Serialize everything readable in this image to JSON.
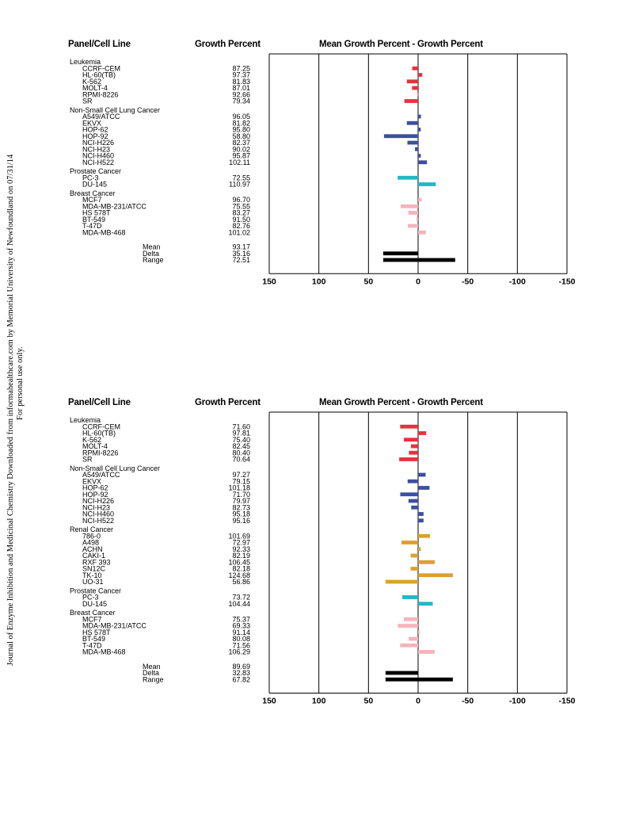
{
  "watermark": {
    "line1": "Journal of Enzyme Inhibition and Medicinal Chemistry Downloaded from informahealthcare.com by Memorial University of Newfoundland on 07/31/14",
    "line2": "For personal use only."
  },
  "colors": {
    "Leukemia": "#e8323c",
    "Non-Small Cell Lung Cancer": "#3c4fa0",
    "Renal Cancer": "#dca030",
    "Prostate Cancer": "#23b7c4",
    "Breast Cancer": "#f6b3bc",
    "summary": "#000000"
  },
  "chart_data": [
    {
      "type": "bar",
      "orientation": "horizontal",
      "headers": {
        "panel": "Panel/Cell Line",
        "growth": "Growth Percent",
        "mean_chart": "Mean Growth Percent - Growth Percent"
      },
      "xlim": [
        150,
        -150
      ],
      "ticks": [
        "150",
        "100",
        "50",
        "0",
        "-50",
        "-100",
        "-150"
      ],
      "groups": [
        {
          "name": "Leukemia",
          "rows": [
            {
              "label": "CCRF-CEM",
              "gp": "87.25",
              "value": 5.92
            },
            {
              "label": "HL-60(TB)",
              "gp": "97.37",
              "value": -4.2
            },
            {
              "label": "K-562",
              "gp": "81.83",
              "value": 11.34
            },
            {
              "label": "MOLT-4",
              "gp": "87.01",
              "value": 6.16
            },
            {
              "label": "RPMI-8226",
              "gp": "92.66",
              "value": 0.51
            },
            {
              "label": "SR",
              "gp": "79.34",
              "value": 13.83
            }
          ]
        },
        {
          "name": "Non-Small Cell Lung Cancer",
          "rows": [
            {
              "label": "A549/ATCC",
              "gp": "96.05",
              "value": -2.88
            },
            {
              "label": "EKVX",
              "gp": "81.82",
              "value": 11.35
            },
            {
              "label": "HOP-62",
              "gp": "95.80",
              "value": -2.63
            },
            {
              "label": "HOP-92",
              "gp": "58.80",
              "value": 34.37
            },
            {
              "label": "NCI-H226",
              "gp": "82.37",
              "value": 10.8
            },
            {
              "label": "NCI-H23",
              "gp": "90.02",
              "value": 3.15
            },
            {
              "label": "NCI-H460",
              "gp": "95.87",
              "value": -2.7
            },
            {
              "label": "NCI-H522",
              "gp": "102.11",
              "value": -8.94
            }
          ]
        },
        {
          "name": "Prostate Cancer",
          "rows": [
            {
              "label": "PC-3",
              "gp": "72.55",
              "value": 20.62
            },
            {
              "label": "DU-145",
              "gp": "110.97",
              "value": -17.8
            }
          ]
        },
        {
          "name": "Breast Cancer",
          "rows": [
            {
              "label": "MCF7",
              "gp": "96.70",
              "value": -3.53
            },
            {
              "label": "MDA-MB-231/ATCC",
              "gp": "75.55",
              "value": 17.62
            },
            {
              "label": "HS 578T",
              "gp": "83.27",
              "value": 9.9
            },
            {
              "label": "BT-549",
              "gp": "91.50",
              "value": 1.67
            },
            {
              "label": "T-47D",
              "gp": "82.76",
              "value": 10.41
            },
            {
              "label": "MDA-MB-468",
              "gp": "101.02",
              "value": -7.85
            }
          ]
        }
      ],
      "summary": [
        {
          "label": "Mean",
          "gp": "93.17"
        },
        {
          "label": "Delta",
          "gp": "35.16",
          "bar_from": 0,
          "bar_to": 35.16
        },
        {
          "label": "Range",
          "gp": "72.51",
          "bar_from": -37.35,
          "bar_to": 35.16
        }
      ]
    },
    {
      "type": "bar",
      "orientation": "horizontal",
      "headers": {
        "panel": "Panel/Cell Line",
        "growth": "Growth Percent",
        "mean_chart": "Mean Growth Percent - Growth Percent"
      },
      "xlim": [
        150,
        -150
      ],
      "ticks": [
        "150",
        "100",
        "50",
        "0",
        "-50",
        "-100",
        "-150"
      ],
      "groups": [
        {
          "name": "Leukemia",
          "rows": [
            {
              "label": "CCRF-CEM",
              "gp": "71.60",
              "value": 18.09
            },
            {
              "label": "HL-60(TB)",
              "gp": "97.81",
              "value": -8.12
            },
            {
              "label": "K-562",
              "gp": "75.40",
              "value": 14.29
            },
            {
              "label": "MOLT-4",
              "gp": "82.45",
              "value": 7.24
            },
            {
              "label": "RPMI-8226",
              "gp": "80.40",
              "value": 9.29
            },
            {
              "label": "SR",
              "gp": "70.64",
              "value": 19.05
            }
          ]
        },
        {
          "name": "Non-Small Cell Lung Cancer",
          "rows": [
            {
              "label": "A549/ATCC",
              "gp": "97.27",
              "value": -7.58
            },
            {
              "label": "EKVX",
              "gp": "79.15",
              "value": 10.54
            },
            {
              "label": "HOP-62",
              "gp": "101.18",
              "value": -11.49
            },
            {
              "label": "HOP-92",
              "gp": "71.70",
              "value": 17.99
            },
            {
              "label": "NCI-H226",
              "gp": "79.97",
              "value": 9.72
            },
            {
              "label": "NCI-H23",
              "gp": "82.73",
              "value": 6.96
            },
            {
              "label": "NCI-H460",
              "gp": "95.18",
              "value": -5.49
            },
            {
              "label": "NCI-H522",
              "gp": "95.16",
              "value": -5.47
            }
          ]
        },
        {
          "name": "Renal Cancer",
          "rows": [
            {
              "label": "786-0",
              "gp": "101.69",
              "value": -12.0
            },
            {
              "label": "A498",
              "gp": "72.97",
              "value": 16.72
            },
            {
              "label": "ACHN",
              "gp": "92.33",
              "value": -2.64
            },
            {
              "label": "CAKI-1",
              "gp": "82.19",
              "value": 7.5
            },
            {
              "label": "RXF 393",
              "gp": "106.45",
              "value": -16.76
            },
            {
              "label": "SN12C",
              "gp": "82.18",
              "value": 7.51
            },
            {
              "label": "TK-10",
              "gp": "124.68",
              "value": -34.99
            },
            {
              "label": "UO-31",
              "gp": "56.86",
              "value": 32.83
            }
          ]
        },
        {
          "name": "Prostate Cancer",
          "rows": [
            {
              "label": "PC-3",
              "gp": "73.72",
              "value": 15.97
            },
            {
              "label": "DU-145",
              "gp": "104.44",
              "value": -14.75
            }
          ]
        },
        {
          "name": "Breast Cancer",
          "rows": [
            {
              "label": "MCF7",
              "gp": "75.37",
              "value": 14.32
            },
            {
              "label": "MDA-MB-231/ATCC",
              "gp": "69.33",
              "value": 20.36
            },
            {
              "label": "HS 578T",
              "gp": "91.14",
              "value": -1.45
            },
            {
              "label": "BT-549",
              "gp": "80.08",
              "value": 9.61
            },
            {
              "label": "T-47D",
              "gp": "71.56",
              "value": 18.13
            },
            {
              "label": "MDA-MB-468",
              "gp": "106.29",
              "value": -16.6
            }
          ]
        }
      ],
      "summary": [
        {
          "label": "Mean",
          "gp": "89.69"
        },
        {
          "label": "Delta",
          "gp": "32.83",
          "bar_from": 0,
          "bar_to": 32.83
        },
        {
          "label": "Range",
          "gp": "67.82",
          "bar_from": -34.99,
          "bar_to": 32.83
        }
      ]
    }
  ]
}
